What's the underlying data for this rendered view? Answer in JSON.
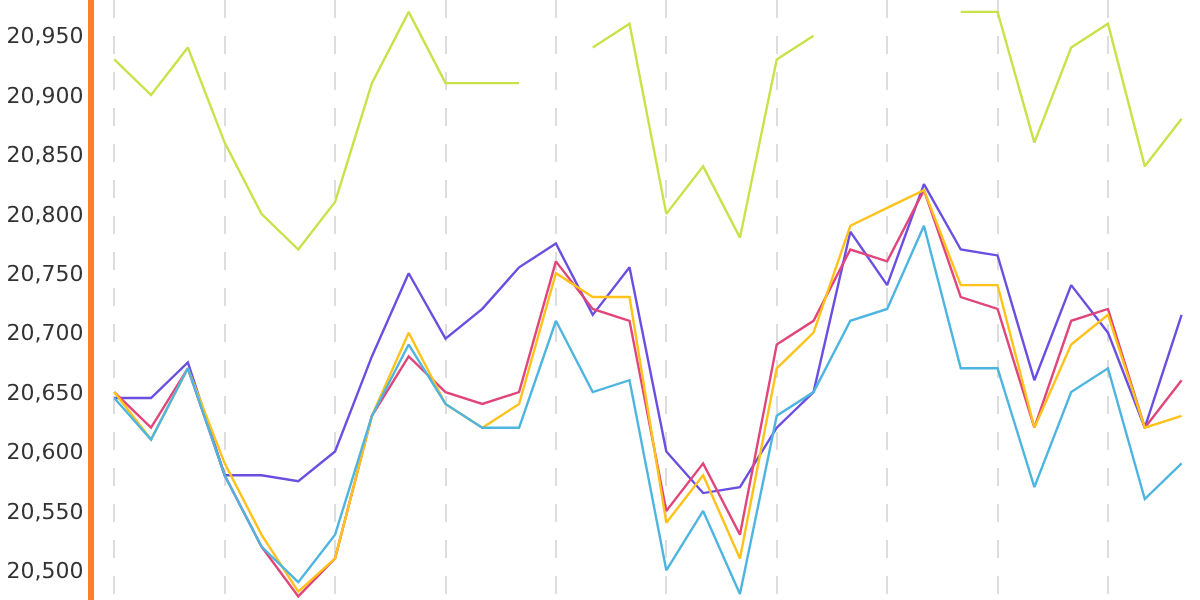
{
  "chart_data": {
    "type": "line",
    "categories": [
      null,
      null,
      null,
      null,
      null,
      null,
      null,
      null,
      null,
      null,
      null,
      null,
      null,
      null,
      null,
      null,
      null,
      null,
      null,
      null,
      null,
      null,
      null,
      null,
      null,
      null,
      null,
      null,
      null,
      null
    ],
    "series": [
      {
        "color": "#c8e24a",
        "values": [
          20930,
          20900,
          20940,
          20860,
          20800,
          20770,
          20810,
          20910,
          20970,
          20910,
          20910,
          20910,
          null,
          20940,
          20960,
          20800,
          20840,
          20780,
          20930,
          20950,
          null,
          null,
          null,
          20970,
          20970,
          20860,
          20940,
          20960,
          20840,
          20880
        ]
      },
      {
        "color": "#6a4fe0",
        "values": [
          20645,
          20645,
          20675,
          20580,
          20580,
          20575,
          20600,
          20680,
          20750,
          20695,
          20720,
          20755,
          20775,
          20715,
          20755,
          20600,
          20565,
          20570,
          20620,
          20650,
          20785,
          20740,
          20825,
          20770,
          20765,
          20660,
          20740,
          20700,
          20620,
          20715
        ]
      },
      {
        "color": "#e0457b",
        "values": [
          20650,
          20620,
          20670,
          20580,
          20520,
          20478,
          20510,
          20630,
          20680,
          20650,
          20640,
          20650,
          20760,
          20720,
          20710,
          20550,
          20590,
          20530,
          20690,
          20710,
          20770,
          20760,
          20820,
          20730,
          20720,
          20620,
          20710,
          20720,
          20620,
          20660
        ]
      },
      {
        "color": "#ffc21a",
        "values": [
          20650,
          20610,
          20670,
          20590,
          20530,
          20482,
          20510,
          20630,
          20700,
          20640,
          20620,
          20640,
          20750,
          20730,
          20730,
          20540,
          20580,
          20510,
          20670,
          20700,
          20790,
          20805,
          20820,
          20740,
          20740,
          20620,
          20690,
          20715,
          20620,
          20630
        ]
      },
      {
        "color": "#4eb5e0",
        "values": [
          20645,
          20610,
          20670,
          20580,
          20520,
          20490,
          20530,
          20630,
          20690,
          20640,
          20620,
          20620,
          20710,
          20650,
          20660,
          20500,
          20550,
          20480,
          20630,
          20650,
          20710,
          20720,
          20790,
          20670,
          20670,
          20570,
          20650,
          20670,
          20560,
          20590
        ]
      }
    ],
    "ylim": [
      20475,
      20980
    ],
    "yticks": [
      {
        "value": 20500,
        "label": "20,500"
      },
      {
        "value": 20550,
        "label": "20,550"
      },
      {
        "value": 20600,
        "label": "20,600"
      },
      {
        "value": 20650,
        "label": "20,650"
      },
      {
        "value": 20700,
        "label": "20,700"
      },
      {
        "value": 20750,
        "label": "20,750"
      },
      {
        "value": 20800,
        "label": "20,800"
      },
      {
        "value": 20850,
        "label": "20,850"
      },
      {
        "value": 20900,
        "label": "20,900"
      },
      {
        "value": 20950,
        "label": "20,950"
      }
    ],
    "grid": "x",
    "tick_labels": "y",
    "marker": "none",
    "line_style": "solid"
  }
}
